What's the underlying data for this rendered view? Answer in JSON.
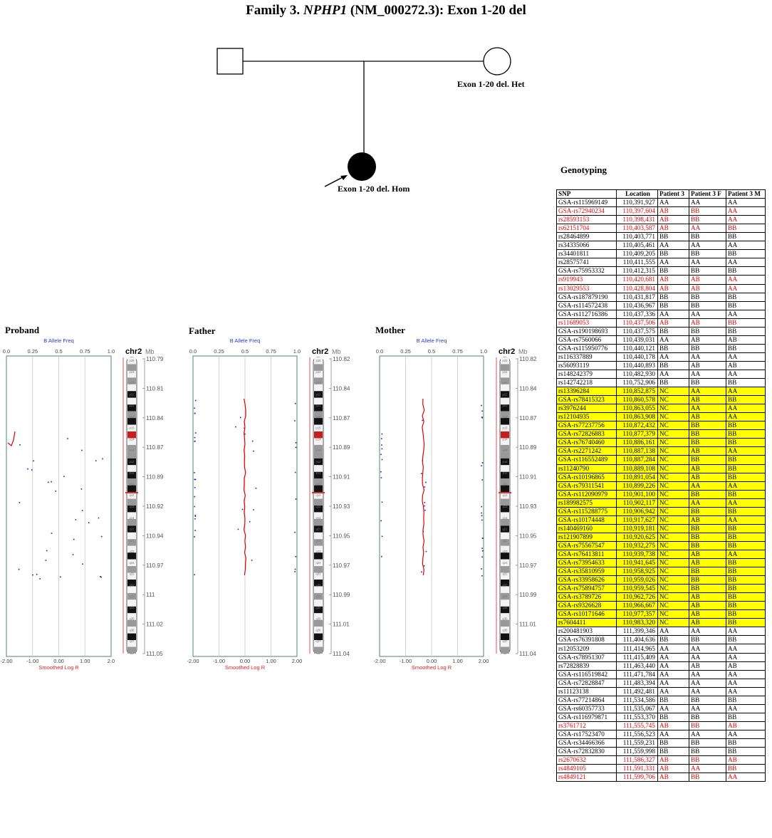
{
  "title": {
    "prefix": "Family 3. ",
    "gene": "NPHP1",
    "suffix": " (NM_000272.3): Exon 1-20 del"
  },
  "pedigree": {
    "mother_label": "Exon 1-20 del. Het",
    "proband_label": "Exon 1-20 del. Hom"
  },
  "panels": [
    {
      "name": "Proband",
      "baf_label": "B Allele Freq",
      "lrr_label": "Smoothed Log R",
      "chr_label": "chr2",
      "mb_label": "Mb",
      "baf_ticks": [
        "0.0",
        "0.25",
        "0.5",
        "0.75",
        "1.0"
      ],
      "lrr_ticks": [
        "-2.00",
        "-1.00",
        "0.00",
        "1.00",
        "2.0"
      ],
      "mb_ticks": [
        "110.79",
        "110.81",
        "110.84",
        "110.87",
        "110.89",
        "110.92",
        "110.94",
        "110.97",
        "111",
        "111.02",
        "111.05"
      ]
    },
    {
      "name": "Father",
      "baf_label": "B Allele Freq",
      "lrr_label": "Smoothed Log R",
      "chr_label": "chr2",
      "mb_label": "Mb",
      "baf_ticks": [
        "0.0",
        "0.25",
        "0.5",
        "0.75",
        "1.0"
      ],
      "lrr_ticks": [
        "-2.00",
        "-1.00",
        "0.00",
        "1.00",
        "2.00"
      ],
      "mb_ticks": [
        "110.82",
        "110.84",
        "110.87",
        "110.89",
        "110.91",
        "110.93",
        "110.95",
        "110.97",
        "110.99",
        "111.01",
        "111.04"
      ]
    },
    {
      "name": "Mother",
      "baf_label": "B Allele Freq",
      "lrr_label": "Smoothed Log R",
      "chr_label": "chr2",
      "mb_label": "Mb",
      "baf_ticks": [
        "0.0",
        "0.25",
        "0.5",
        "0.75",
        "1.0"
      ],
      "lrr_ticks": [
        "-2.00",
        "-1.00",
        "0.00",
        "1.00",
        "2.00"
      ],
      "mb_ticks": [
        "110.82",
        "110.84",
        "110.87",
        "110.89",
        "110.91",
        "110.93",
        "110.95",
        "110.97",
        "110.99",
        "111.01",
        "111.04"
      ]
    }
  ],
  "band_labels": [
    "p25",
    "p24",
    "p23",
    "p22",
    "p21",
    "p16",
    "p15",
    "p14",
    "p13",
    "p12",
    "p11",
    "q11",
    "q12",
    "q13",
    "q14",
    "q21",
    "q22",
    "q23",
    "q24",
    "q31",
    "q32",
    "q33",
    "q34",
    "q35",
    "q36",
    "q37"
  ],
  "genotyping": {
    "title": "Genotyping",
    "headers": [
      "SNP",
      "Location",
      "Patient 3",
      "Patient 3 F",
      "Patient 3 M"
    ],
    "rows": [
      [
        "GSA-rs115969149",
        "110,391,927",
        "AA",
        "AA",
        "AA"
      ],
      [
        "GSA-rs72940234",
        "110,397,604",
        "AB",
        "BB",
        "AA"
      ],
      [
        "rs28593153",
        "110,398,431",
        "AB",
        "BB",
        "AA"
      ],
      [
        "rs62151704",
        "110,403,587",
        "AB",
        "AA",
        "BB"
      ],
      [
        "rs28464899",
        "110,403,771",
        "BB",
        "BB",
        "BB"
      ],
      [
        "rs34335066",
        "110,405,461",
        "AA",
        "AA",
        "AA"
      ],
      [
        "rs34401811",
        "110,409,205",
        "BB",
        "BB",
        "BB"
      ],
      [
        "rs28575741",
        "110,411,555",
        "AA",
        "AA",
        "AA"
      ],
      [
        "GSA-rs75953332",
        "110,412,315",
        "BB",
        "BB",
        "BB"
      ],
      [
        "rs919943",
        "110,420,681",
        "AB",
        "AB",
        "AA"
      ],
      [
        "rs13029553",
        "110,428,804",
        "AB",
        "AB",
        "AA"
      ],
      [
        "GSA-rs187879190",
        "110,431,817",
        "BB",
        "BB",
        "BB"
      ],
      [
        "GSA-rs114572438",
        "110,436,967",
        "BB",
        "BB",
        "BB"
      ],
      [
        "GSA-rs112716386",
        "110,437,336",
        "AA",
        "AA",
        "AA"
      ],
      [
        "rs11689053",
        "110,437,506",
        "AB",
        "AB",
        "BB"
      ],
      [
        "GSA-rs190198693",
        "110,437,575",
        "BB",
        "BB",
        "BB"
      ],
      [
        "GSA-rs7560066",
        "110,439,031",
        "AA",
        "AB",
        "AB"
      ],
      [
        "GSA-rs115950776",
        "110,440,121",
        "BB",
        "BB",
        "BB"
      ],
      [
        "rs116337889",
        "110,440,178",
        "AA",
        "AA",
        "AA"
      ],
      [
        "rs56093119",
        "110,440,893",
        "BB",
        "AB",
        "AB"
      ],
      [
        "rs148242379",
        "110,482,930",
        "AA",
        "AA",
        "AA"
      ],
      [
        "rs142742218",
        "110,752,906",
        "BB",
        "BB",
        "BB"
      ],
      [
        "rs13396284",
        "110,852,875",
        "NC",
        "AA",
        "AA"
      ],
      [
        "GSA-rs78415323",
        "110,860,578",
        "NC",
        "AB",
        "BB"
      ],
      [
        "rs3976244",
        "110,863,055",
        "NC",
        "AA",
        "AA"
      ],
      [
        "rs12104935",
        "110,863,908",
        "NC",
        "AB",
        "AA"
      ],
      [
        "GSA-rs77237756",
        "110,872,432",
        "NC",
        "BB",
        "BB"
      ],
      [
        "GSA-rs72826883",
        "110,877,379",
        "NC",
        "BB",
        "BB"
      ],
      [
        "GSA-rs76740460",
        "110,886,161",
        "NC",
        "BB",
        "BB"
      ],
      [
        "GSA-rs2271242",
        "110,887,138",
        "NC",
        "AB",
        "AA"
      ],
      [
        "GSA-rs116552489",
        "110,887,284",
        "NC",
        "BB",
        "BB"
      ],
      [
        "rs11240790",
        "110,889,108",
        "NC",
        "AB",
        "BB"
      ],
      [
        "GSA-rs10196865",
        "110,891,054",
        "NC",
        "AB",
        "BB"
      ],
      [
        "GSA-rs79311541",
        "110,899,226",
        "NC",
        "AA",
        "AA"
      ],
      [
        "GSA-rs112090979",
        "110,901,100",
        "NC",
        "BB",
        "BB"
      ],
      [
        "rs189982575",
        "110,902,117",
        "NC",
        "AA",
        "AA"
      ],
      [
        "GSA-rs115288775",
        "110,906,942",
        "NC",
        "BB",
        "BB"
      ],
      [
        "GSA-rs10174448",
        "110,917,627",
        "NC",
        "AB",
        "AA"
      ],
      [
        "rs140469160",
        "110,919,181",
        "NC",
        "BB",
        "BB"
      ],
      [
        "rs121907899",
        "110,920,625",
        "NC",
        "BB",
        "BB"
      ],
      [
        "GSA-rs75567547",
        "110,932,275",
        "NC",
        "BB",
        "BB"
      ],
      [
        "GSA-rs76413811",
        "110,939,738",
        "NC",
        "AB",
        "AA"
      ],
      [
        "GSA-rs73954633",
        "110,941,645",
        "NC",
        "AB",
        "BB"
      ],
      [
        "GSA-rs35810959",
        "110,958,925",
        "NC",
        "BB",
        "BB"
      ],
      [
        "GSA-rs33958626",
        "110,959,026",
        "NC",
        "BB",
        "BB"
      ],
      [
        "GSA-rs75894757",
        "110,959,545",
        "NC",
        "BB",
        "BB"
      ],
      [
        "GSA-rs3789726",
        "110,962,726",
        "NC",
        "AB",
        "BB"
      ],
      [
        "GSA-rs9326628",
        "110,966,667",
        "NC",
        "AB",
        "BB"
      ],
      [
        "GSA-rs10171646",
        "110,977,357",
        "NC",
        "AB",
        "BB"
      ],
      [
        "rs7604411",
        "110,983,320",
        "NC",
        "AB",
        "BB"
      ],
      [
        "rs200481903",
        "111,399,346",
        "AA",
        "AA",
        "AA"
      ],
      [
        "GSA-rs76391808",
        "111,404,636",
        "BB",
        "BB",
        "BB"
      ],
      [
        "rs12053209",
        "111,414,965",
        "AA",
        "AA",
        "AA"
      ],
      [
        "GSA-rs78951307",
        "111,415,409",
        "AA",
        "AA",
        "AA"
      ],
      [
        "rs72828839",
        "111,463,440",
        "AA",
        "AB",
        "AB"
      ],
      [
        "GSA-rs116519842",
        "111,471,784",
        "AA",
        "AA",
        "AA"
      ],
      [
        "GSA-rs72828847",
        "111,483,394",
        "AA",
        "AA",
        "AA"
      ],
      [
        "rs11123138",
        "111,492,481",
        "AA",
        "AA",
        "AA"
      ],
      [
        "GSA-rs77214864",
        "111,534,586",
        "BB",
        "BB",
        "BB"
      ],
      [
        "GSA-rs60357733",
        "111,535,067",
        "AA",
        "AA",
        "AA"
      ],
      [
        "GSA-rs116979871",
        "111,553,370",
        "BB",
        "BB",
        "BB"
      ],
      [
        "rs3761712",
        "111,555,745",
        "AB",
        "BB",
        "AB"
      ],
      [
        "GSA-rs17523470",
        "111,556,523",
        "AA",
        "AA",
        "AA"
      ],
      [
        "GSA-rs34466366",
        "111,559,231",
        "BB",
        "BB",
        "BB"
      ],
      [
        "GSA-rs72832830",
        "111,559,998",
        "BB",
        "BB",
        "BB"
      ],
      [
        "rs2670632",
        "111,586,327",
        "AB",
        "BB",
        "AB"
      ],
      [
        "rs4849105",
        "111,591,331",
        "AB",
        "AA",
        "BB"
      ],
      [
        "rs4849121",
        "111,599,706",
        "AB",
        "BB",
        "AA"
      ]
    ],
    "red_rows": [
      1,
      2,
      3,
      9,
      10,
      14,
      61,
      65,
      66,
      67
    ],
    "highlight_rows": [
      22,
      23,
      24,
      25,
      26,
      27,
      28,
      29,
      30,
      31,
      32,
      33,
      34,
      35,
      36,
      37,
      38,
      39,
      40,
      41,
      42,
      43,
      44,
      45,
      46,
      47,
      48,
      49
    ]
  },
  "colors": {
    "red_text": "#e00000",
    "highlight": "#ffff00",
    "baf_points": "#1a1acc",
    "lrr_line": "#e00000",
    "axis_label_blue": "#2a3ad0",
    "axis_label_red": "#e02020",
    "frame_green": "#4a8a6a"
  }
}
